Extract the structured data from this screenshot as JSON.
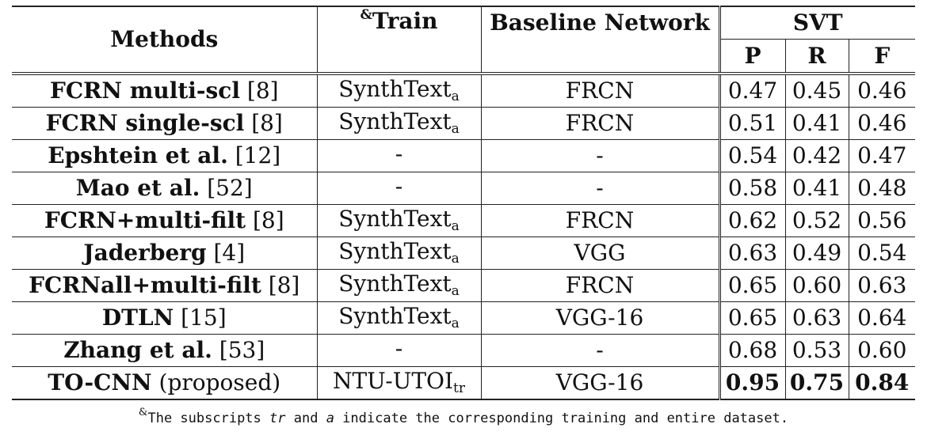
{
  "header": {
    "methods": "Methods",
    "train_mark": "&",
    "train": "Train",
    "baseline": "Baseline Network",
    "svt": "SVT",
    "p": "P",
    "r": "R",
    "f": "F"
  },
  "rows": [
    {
      "method": "FCRN multi-scl",
      "ref": "[8]",
      "train": "SynthText",
      "train_sub": "a",
      "net": "FRCN",
      "p": "0.47",
      "r": "0.45",
      "f": "0.46"
    },
    {
      "method": "FCRN single-scl",
      "ref": "[8]",
      "train": "SynthText",
      "train_sub": "a",
      "net": "FRCN",
      "p": "0.51",
      "r": "0.41",
      "f": "0.46"
    },
    {
      "method": "Epshtein et al.",
      "ref": "[12]",
      "train": "-",
      "train_sub": "",
      "net": "-",
      "p": "0.54",
      "r": "0.42",
      "f": "0.47"
    },
    {
      "method": "Mao et al.",
      "ref": "[52]",
      "train": "-",
      "train_sub": "",
      "net": "-",
      "p": "0.58",
      "r": "0.41",
      "f": "0.48"
    },
    {
      "method": "FCRN+multi-filt",
      "ref": "[8]",
      "train": "SynthText",
      "train_sub": "a",
      "net": "FRCN",
      "p": "0.62",
      "r": "0.52",
      "f": "0.56"
    },
    {
      "method": "Jaderberg",
      "ref": "[4]",
      "train": "SynthText",
      "train_sub": "a",
      "net": "VGG",
      "p": "0.63",
      "r": "0.49",
      "f": "0.54"
    },
    {
      "method": "FCRNall+multi-filt",
      "ref": "[8]",
      "train": "SynthText",
      "train_sub": "a",
      "net": "FRCN",
      "p": "0.65",
      "r": "0.60",
      "f": "0.63"
    },
    {
      "method": "DTLN",
      "ref": "[15]",
      "train": "SynthText",
      "train_sub": "a",
      "net": "VGG-16",
      "p": "0.65",
      "r": "0.63",
      "f": "0.64"
    },
    {
      "method": "Zhang et al.",
      "ref": "[53]",
      "train": "-",
      "train_sub": "",
      "net": "-",
      "p": "0.68",
      "r": "0.53",
      "f": "0.60"
    },
    {
      "method": "TO-CNN",
      "ref": "(proposed)",
      "train": "NTU-UTOI",
      "train_sub": "tr",
      "net": "VGG-16",
      "p": "0.95",
      "r": "0.75",
      "f": "0.84"
    }
  ],
  "footnote": {
    "mark": "&",
    "text_a": "The subscripts ",
    "tr": "tr",
    "text_b": " and ",
    "a": "a",
    "text_c": " indicate the corresponding training and entire dataset."
  }
}
